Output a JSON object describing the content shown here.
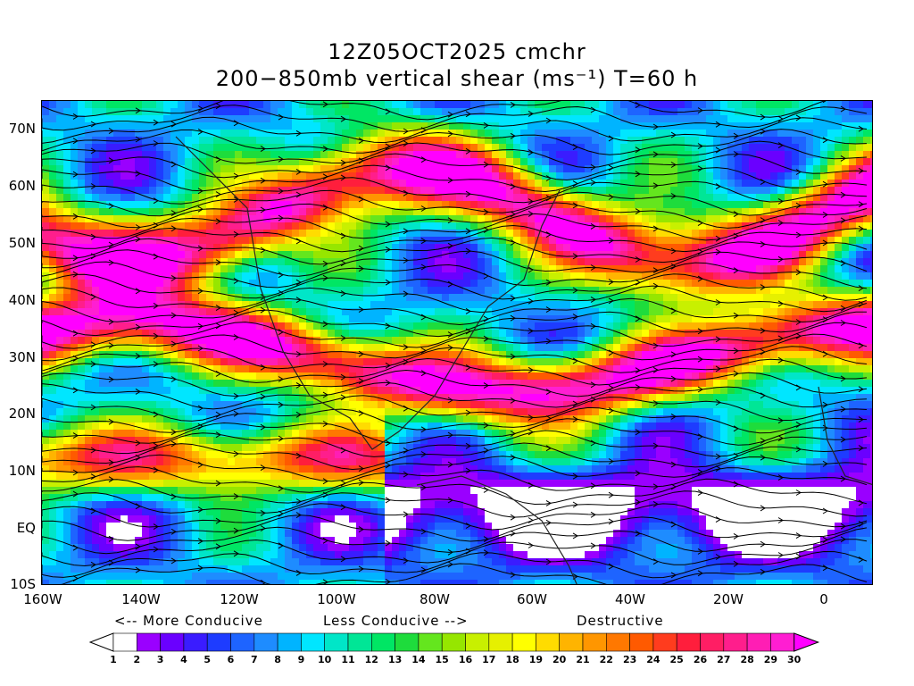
{
  "header": {
    "line1": "12Z05OCT2025 cmchr",
    "line2": "200−850mb vertical shear (ms⁻¹) T=60 h"
  },
  "axes": {
    "lat_labels": [
      "70N",
      "60N",
      "50N",
      "40N",
      "30N",
      "20N",
      "10N",
      "EQ",
      "10S"
    ],
    "lon_labels": [
      "160W",
      "140W",
      "120W",
      "100W",
      "80W",
      "60W",
      "40W",
      "20W",
      "0"
    ],
    "lat_range": [
      -10,
      75
    ],
    "lon_range": [
      -160,
      10
    ]
  },
  "legend": {
    "more_conducive": "<-- More Conducive",
    "less_conducive": "Less Conducive -->",
    "destructive": "Destructive",
    "values": [
      "1",
      "2",
      "3",
      "4",
      "5",
      "6",
      "7",
      "8",
      "9",
      "10",
      "11",
      "12",
      "13",
      "14",
      "15",
      "16",
      "17",
      "18",
      "19",
      "20",
      "21",
      "22",
      "23",
      "24",
      "25",
      "26",
      "27",
      "28",
      "29",
      "30"
    ],
    "colors": [
      "#ffffff",
      "#9a00ff",
      "#6a00ff",
      "#3a1cff",
      "#1e3cff",
      "#1e64ff",
      "#1e8cff",
      "#00b4ff",
      "#00e6ff",
      "#00e6c8",
      "#00e696",
      "#00e664",
      "#1edc3c",
      "#64e61e",
      "#96e600",
      "#c8f000",
      "#e6f000",
      "#ffff00",
      "#ffdc00",
      "#ffb400",
      "#ff9600",
      "#ff7800",
      "#ff5a00",
      "#ff3c1e",
      "#ff1e3c",
      "#ff1e64",
      "#ff1e8c",
      "#ff1eb4",
      "#ff1ed2",
      "#ff00ff"
    ]
  }
}
